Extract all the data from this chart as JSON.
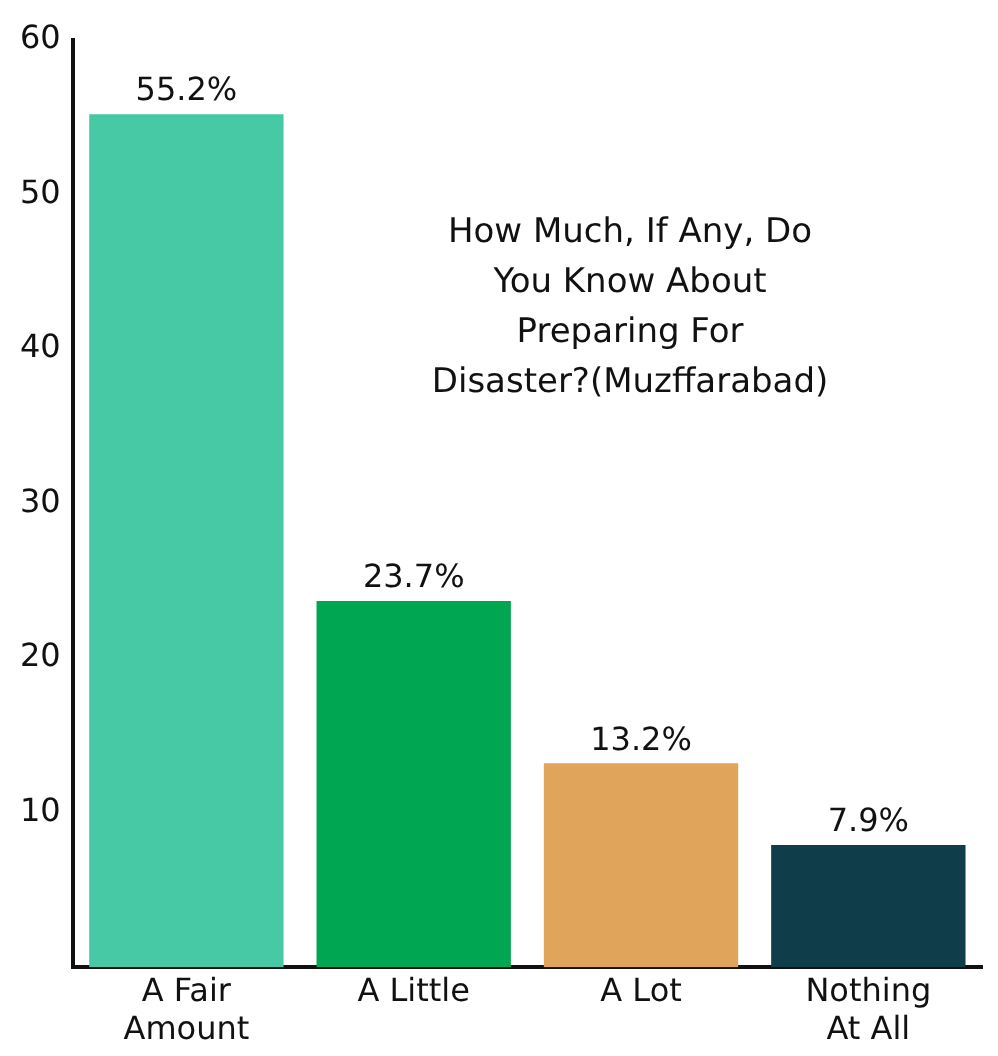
{
  "chart_data": {
    "type": "bar",
    "title": "How Much, If Any, Do You Know About Preparing For Disaster?(Muzffarabad)",
    "categories": [
      "A Fair Amount",
      "A Little",
      "A Lot",
      "Nothing At All"
    ],
    "values": [
      55.2,
      23.7,
      13.2,
      7.9
    ],
    "colors": [
      "#48c9a5",
      "#00a651",
      "#e0a55a",
      "#0f3d4a"
    ],
    "value_labels": [
      "55.2%",
      "23.7%",
      "13.2%",
      "7.9%"
    ],
    "ylim": [
      0,
      60
    ],
    "yticks": [
      10,
      20,
      30,
      40,
      50,
      60
    ],
    "grid": false,
    "legend": false
  }
}
